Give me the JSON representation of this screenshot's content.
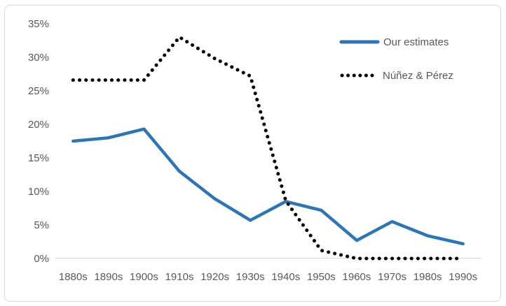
{
  "chart": {
    "background_color": "#ffffff",
    "border_color": "#d9d9d9",
    "axis_line_color": "#d9d9d9",
    "axis_label_color": "#595959"
  },
  "chart_data": {
    "type": "line",
    "title": "",
    "xlabel": "",
    "ylabel": "",
    "categories": [
      "1880s",
      "1890s",
      "1900s",
      "1910s",
      "1920s",
      "1930s",
      "1940s",
      "1950s",
      "1960s",
      "1970s",
      "1980s",
      "1990s"
    ],
    "series": [
      {
        "name": "Our estimates",
        "style": "solid",
        "color": "#2e75b6",
        "values": [
          17.5,
          18.0,
          19.3,
          13.0,
          8.9,
          5.7,
          8.5,
          7.2,
          2.7,
          5.5,
          3.4,
          2.2
        ]
      },
      {
        "name": "Núñez & Pérez",
        "style": "dotted",
        "color": "#000000",
        "values": [
          26.6,
          26.6,
          26.6,
          33.0,
          29.8,
          27.2,
          8.6,
          1.2,
          0.0,
          0.0,
          0.0,
          0.0
        ]
      }
    ],
    "ylim": [
      0,
      35
    ],
    "ytick_step": 5,
    "ytick_labels": [
      "0%",
      "5%",
      "10%",
      "15%",
      "20%",
      "25%",
      "30%",
      "35%"
    ],
    "grid": "off",
    "legend_position": "top-right"
  }
}
